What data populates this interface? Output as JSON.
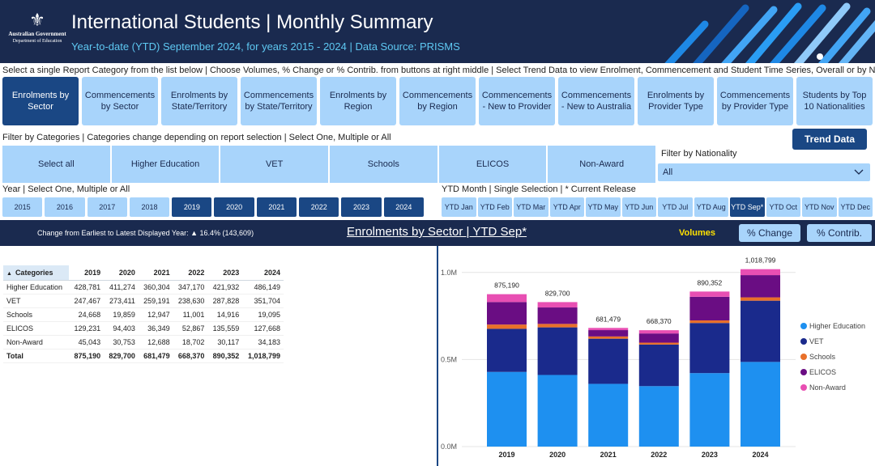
{
  "header": {
    "title": "International Students | Monthly Summary",
    "subtitle": "Year-to-date (YTD) September 2024, for years 2015 - 2024 | Data Source: PRISMS",
    "logo_line1": "Australian Government",
    "logo_line2": "Department of Education"
  },
  "instructions": {
    "report": "Select a single Report Category from the list below | Choose Volumes, % Change or % Contrib. from buttons at right middle | Select Trend Data to view Enrolment, Commencement and Student Time Series, Overall or by Nationality",
    "categories": "Filter by Categories | Categories change depending on report selection | Select One, Multiple or All",
    "year": "Year | Select One, Multiple or All",
    "month": "YTD Month | Single Selection | * Current Release"
  },
  "report_buttons": [
    {
      "label": "Enrolments by Sector",
      "active": true
    },
    {
      "label": "Commencements by Sector",
      "active": false
    },
    {
      "label": "Enrolments by State/Territory",
      "active": false
    },
    {
      "label": "Commencements by State/Territory",
      "active": false
    },
    {
      "label": "Enrolments by Region",
      "active": false
    },
    {
      "label": "Commencements by Region",
      "active": false
    },
    {
      "label": "Commencements - New to Provider",
      "active": false
    },
    {
      "label": "Commencements - New to Australia",
      "active": false
    },
    {
      "label": "Enrolments by Provider Type",
      "active": false
    },
    {
      "label": "Commencements by Provider Type",
      "active": false
    },
    {
      "label": "Students by Top 10 Nationalities",
      "active": false
    }
  ],
  "trend_button": "Trend Data",
  "category_buttons": [
    "Select all",
    "Higher Education",
    "VET",
    "Schools",
    "ELICOS",
    "Non-Award"
  ],
  "nationality": {
    "label": "Filter by Nationality",
    "value": "All"
  },
  "years": [
    {
      "label": "2015",
      "selected": false
    },
    {
      "label": "2016",
      "selected": false
    },
    {
      "label": "2017",
      "selected": false
    },
    {
      "label": "2018",
      "selected": false
    },
    {
      "label": "2019",
      "selected": true
    },
    {
      "label": "2020",
      "selected": true
    },
    {
      "label": "2021",
      "selected": true
    },
    {
      "label": "2022",
      "selected": true
    },
    {
      "label": "2023",
      "selected": true
    },
    {
      "label": "2024",
      "selected": true
    }
  ],
  "months": [
    {
      "label": "YTD Jan",
      "selected": false
    },
    {
      "label": "YTD Feb",
      "selected": false
    },
    {
      "label": "YTD Mar",
      "selected": false
    },
    {
      "label": "YTD Apr",
      "selected": false
    },
    {
      "label": "YTD May",
      "selected": false
    },
    {
      "label": "YTD Jun",
      "selected": false
    },
    {
      "label": "YTD Jul",
      "selected": false
    },
    {
      "label": "YTD Aug",
      "selected": false
    },
    {
      "label": "YTD Sep*",
      "selected": true
    },
    {
      "label": "YTD Oct",
      "selected": false
    },
    {
      "label": "YTD Nov",
      "selected": false
    },
    {
      "label": "YTD Dec",
      "selected": false
    }
  ],
  "summary": {
    "change_text": "Change from Earliest to Latest Displayed Year: ▲ 16.4% (143,609)",
    "report_title": "Enrolments by Sector | YTD Sep*",
    "volumes_label": "Volumes",
    "pct_change_label": "% Change",
    "pct_contrib_label": "% Contrib."
  },
  "table": {
    "sort_icon": "▲",
    "columns": [
      "Categories",
      "2019",
      "2020",
      "2021",
      "2022",
      "2023",
      "2024"
    ],
    "rows": [
      [
        "Higher Education",
        "428,781",
        "411,274",
        "360,304",
        "347,170",
        "421,932",
        "486,149"
      ],
      [
        "VET",
        "247,467",
        "273,411",
        "259,191",
        "238,630",
        "287,828",
        "351,704"
      ],
      [
        "Schools",
        "24,668",
        "19,859",
        "12,947",
        "11,001",
        "14,916",
        "19,095"
      ],
      [
        "ELICOS",
        "129,231",
        "94,403",
        "36,349",
        "52,867",
        "135,559",
        "127,668"
      ],
      [
        "Non-Award",
        "45,043",
        "30,753",
        "12,688",
        "18,702",
        "30,117",
        "34,183"
      ]
    ],
    "total": [
      "Total",
      "875,190",
      "829,700",
      "681,479",
      "668,370",
      "890,352",
      "1,018,799"
    ]
  },
  "chart_data": {
    "type": "bar",
    "stacked": true,
    "categories": [
      "2019",
      "2020",
      "2021",
      "2022",
      "2023",
      "2024"
    ],
    "series": [
      {
        "name": "Higher Education",
        "color": "#1e90f0",
        "values": [
          428781,
          411274,
          360304,
          347170,
          421932,
          486149
        ]
      },
      {
        "name": "VET",
        "color": "#1a2a8c",
        "values": [
          247467,
          273411,
          259191,
          238630,
          287828,
          351704
        ]
      },
      {
        "name": "Schools",
        "color": "#e8702a",
        "values": [
          24668,
          19859,
          12947,
          11001,
          14916,
          19095
        ]
      },
      {
        "name": "ELICOS",
        "color": "#6a0d83",
        "values": [
          129231,
          94403,
          36349,
          52867,
          135559,
          127668
        ]
      },
      {
        "name": "Non-Award",
        "color": "#e84fb3",
        "values": [
          45043,
          30753,
          12688,
          18702,
          30117,
          34183
        ]
      }
    ],
    "totals": [
      "875,190",
      "829,700",
      "681,479",
      "668,370",
      "890,352",
      "1,018,799"
    ],
    "ylim": [
      0,
      1050000
    ],
    "yticks": [
      {
        "value": 0,
        "label": "0.0M"
      },
      {
        "value": 500000,
        "label": "0.5M"
      },
      {
        "value": 1000000,
        "label": "1.0M"
      }
    ],
    "legend_position": "right"
  }
}
